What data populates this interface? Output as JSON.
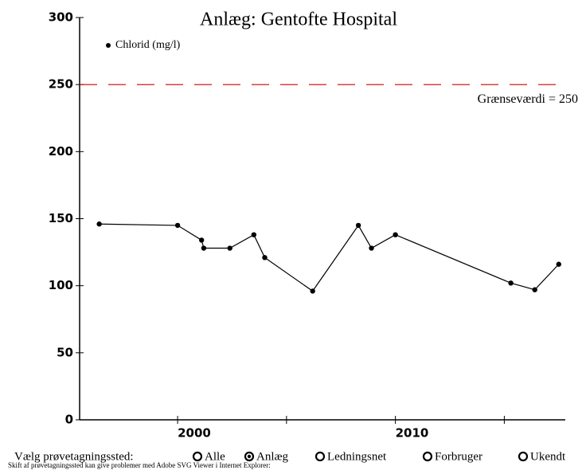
{
  "chart_data": {
    "type": "line",
    "title": "Anlæg: Gentofte Hospital",
    "series": [
      {
        "name": "Chlorid (mg/l)",
        "color": "#000000",
        "values": [
          146,
          145,
          134,
          128,
          128,
          138,
          121,
          96,
          145,
          128,
          138,
          102,
          97,
          116
        ]
      }
    ],
    "x": [
      1996.4,
      2000.0,
      2001.1,
      2001.2,
      2002.4,
      2003.5,
      2004.0,
      2006.2,
      2008.3,
      2008.9,
      2010.0,
      2015.3,
      2016.4,
      2017.5
    ],
    "xlim": [
      1995.5,
      2017.8
    ],
    "xticks": [
      2000,
      2010
    ],
    "xminorticks": [
      2005,
      2015
    ],
    "ylim": [
      0,
      300
    ],
    "yticks": [
      0,
      50,
      100,
      150,
      200,
      250,
      300
    ],
    "threshold": {
      "value": 250,
      "label": "Grænseværdi = 250",
      "color": "#cc0000"
    }
  },
  "controls": {
    "label": "Vælg prøvetagningssted:",
    "options": [
      "Alle",
      "Anlæg",
      "Ledningsnet",
      "Forbruger",
      "Ukendt"
    ],
    "selected": 1,
    "note": "Skift af prøvetagningssted kan give problemer med Adobe SVG Viewer i Internet Explorer:"
  }
}
